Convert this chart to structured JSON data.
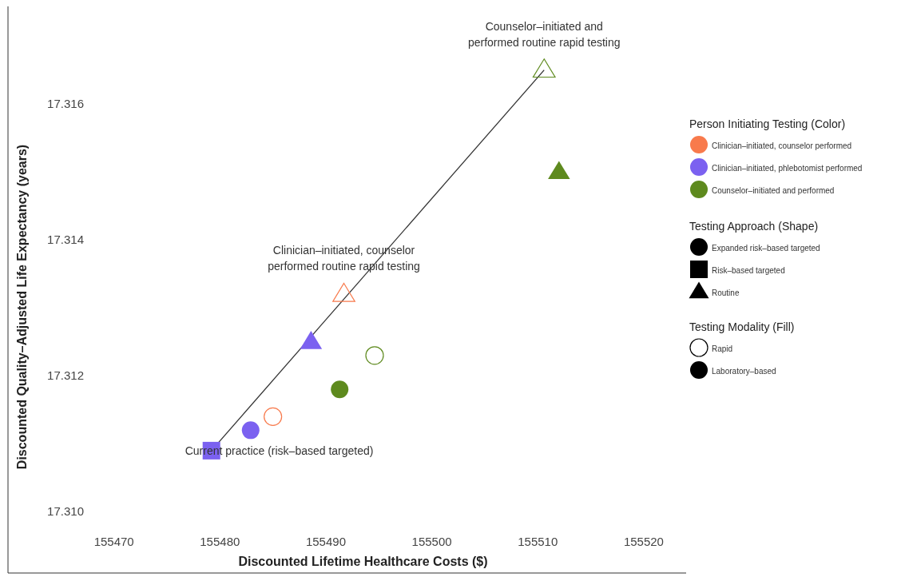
{
  "chart_data": {
    "type": "scatter",
    "xlabel": "Discounted Lifetime Healthcare Costs ($)",
    "ylabel": "Discounted Quality–Adjusted Life Expectancy (years)",
    "xlim": [
      155460,
      155524
    ],
    "xticks": [
      155470,
      155480,
      155490,
      155500,
      155510,
      155520
    ],
    "ylim": [
      17.3091,
      17.3174
    ],
    "yticks": [
      {
        "value": 17.31,
        "label": "17.310"
      },
      17.312,
      17.314,
      17.316
    ],
    "grid": false,
    "legend": "right",
    "legend_title": "Person Initiating Testing (Color)",
    "series": [
      {
        "type": "line",
        "color": "#333333",
        "x": [
          155479.2,
          155510.6
        ],
        "values": [
          17.3109,
          17.3165
        ]
      },
      {
        "name": "Clinician–initiated, counselor performed",
        "color": "#f87a4c",
        "marker": "circle-open",
        "x": [
          155485.0
        ],
        "values": [
          17.3114
        ]
      },
      {
        "color": "#f87a4c",
        "marker": "triangle-open",
        "x": [
          155491.7
        ],
        "values": [
          17.3132
        ]
      },
      {
        "name": "Clinician–initiated, phlebotomist performed",
        "color": "#7b61f0",
        "marker": "square",
        "x": [
          155479.2
        ],
        "values": [
          17.3109
        ]
      },
      {
        "color": "#7b61f0",
        "marker": "circle",
        "x": [
          155482.9
        ],
        "values": [
          17.3112
        ]
      },
      {
        "color": "#7b61f0",
        "marker": "triangle",
        "x": [
          155488.6
        ],
        "values": [
          17.3125
        ]
      },
      {
        "name": "Counselor–initiated and performed",
        "color": "#5e8a1e",
        "marker": "circle",
        "x": [
          155491.3
        ],
        "values": [
          17.3118
        ]
      },
      {
        "color": "#5e8a1e",
        "marker": "circle-open",
        "x": [
          155494.6
        ],
        "values": [
          17.3123
        ]
      },
      {
        "color": "#5e8a1e",
        "marker": "triangle-open",
        "x": [
          155510.6
        ],
        "values": [
          17.3165
        ]
      },
      {
        "color": "#5e8a1e",
        "marker": "triangle",
        "x": [
          155512.0
        ],
        "values": [
          17.315
        ]
      }
    ],
    "annotations": [
      {
        "text": "Counselor–initiated and performed routine rapid testing",
        "x": 155510.6,
        "y": 17.3165
      },
      {
        "text": "Clinician–initiated, counselor performed routine rapid testing",
        "x": 155491.7,
        "y": 17.3132
      },
      {
        "text": "Current practice (risk–based targeted)",
        "x": 155479.2,
        "y": 17.3109
      },
      "Testing Approach (Shape)",
      "Expanded risk–based targeted",
      "Risk–based targeted",
      "Routine",
      "Testing Modality (Fill)",
      "Rapid",
      "Laboratory–based"
    ]
  }
}
